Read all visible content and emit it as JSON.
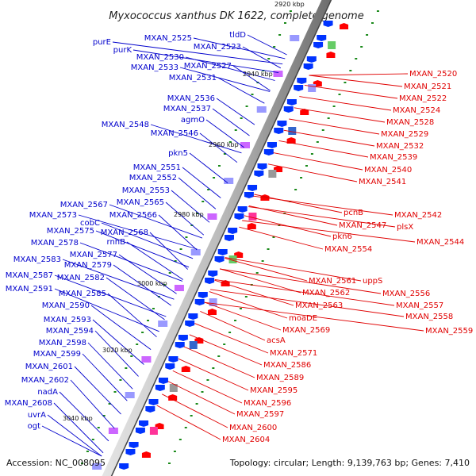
{
  "title": "Myxococcus xanthus DK 1622, complete genome",
  "top_partial_label": "2920 kbp",
  "kbp_ticks": [
    {
      "label": "2940 kbp"
    },
    {
      "label": "2960 kbp"
    },
    {
      "label": "2980 kbp"
    },
    {
      "label": "3000 kbp"
    },
    {
      "label": "3020 kbp"
    },
    {
      "label": "3040 kbp"
    }
  ],
  "left_genes": [
    "tldD",
    "MXAN_2525",
    "MXAN_2523",
    "purE",
    "purK",
    "MXAN_2530",
    "MXAN_2533",
    "MXAN_2527",
    "MXAN_2531",
    "MXAN_2536",
    "MXAN_2537",
    "agmO",
    "MXAN_2548",
    "MXAN_2546",
    "pkn5",
    "MXAN_2551",
    "MXAN_2552",
    "MXAN_2553",
    "MXAN_2565",
    "MXAN_2567",
    "MXAN_2573",
    "MXAN_2566",
    "cobC",
    "MXAN_2575",
    "MXAN_2568",
    "rnhB",
    "MXAN_2578",
    "MXAN_2577",
    "MXAN_2583",
    "MXAN_2579",
    "MXAN_2587",
    "MXAN_2582",
    "MXAN_2591",
    "MXAN_2585",
    "MXAN_2590",
    "MXAN_2593",
    "MXAN_2594",
    "MXAN_2598",
    "MXAN_2599",
    "MXAN_2601",
    "MXAN_2602",
    "nadA",
    "MXAN_2608",
    "uvrA",
    "ogt"
  ],
  "right_genes": [
    "MXAN_2520",
    "MXAN_2521",
    "MXAN_2522",
    "MXAN_2524",
    "MXAN_2528",
    "MXAN_2529",
    "MXAN_2532",
    "MXAN_2539",
    "MXAN_2540",
    "MXAN_2541",
    "pcnB",
    "MXAN_2542",
    "MXAN_2547",
    "plsX",
    "pkn6",
    "MXAN_2544",
    "MXAN_2554",
    "MXAN_2561",
    "uppS",
    "MXAN_2562",
    "MXAN_2556",
    "MXAN_2563",
    "MXAN_2557",
    "moaDE",
    "MXAN_2558",
    "MXAN_2569",
    "MXAN_2559",
    "acsA",
    "MXAN_2571",
    "MXAN_2586",
    "MXAN_2589",
    "MXAN_2595",
    "MXAN_2596",
    "MXAN_2597",
    "MXAN_2600",
    "MXAN_2604"
  ],
  "footer": {
    "accession": "Accession: NC_008095",
    "summary": "Topology: circular; Length: 9,139,763 bp; Genes: 7,410"
  },
  "colors": {
    "left_label": "#0000cc",
    "right_label": "#e00000",
    "forward_gene": "#0033ff",
    "reverse_gene": "#ff0000",
    "tick": "#1a8a1a",
    "backbone": "#555555"
  }
}
